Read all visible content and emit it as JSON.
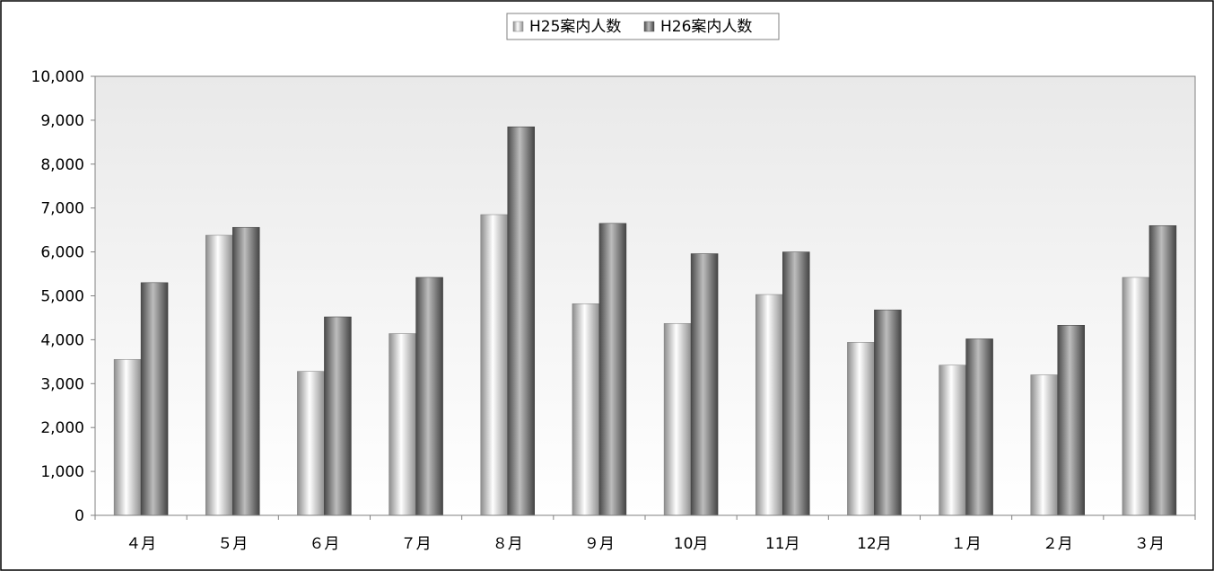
{
  "chart_data": {
    "type": "bar",
    "categories": [
      "４月",
      "５月",
      "６月",
      "７月",
      "８月",
      "９月",
      "10月",
      "11月",
      "12月",
      "１月",
      "２月",
      "３月"
    ],
    "series": [
      {
        "name": "H25案内人数",
        "values": [
          3550,
          6380,
          3280,
          4140,
          6850,
          4820,
          4370,
          5030,
          3940,
          3420,
          3200,
          5420
        ]
      },
      {
        "name": "H26案内人数",
        "values": [
          5300,
          6560,
          4520,
          5420,
          8850,
          6650,
          5960,
          6000,
          4680,
          4020,
          4330,
          6600
        ]
      }
    ],
    "ylim": [
      0,
      10000
    ],
    "yticks": [
      "0",
      "1,000",
      "2,000",
      "3,000",
      "4,000",
      "5,000",
      "6,000",
      "7,000",
      "8,000",
      "9,000",
      "10,000"
    ],
    "grid": false,
    "legend_position": "top-center",
    "colors": {
      "h25": "#d9d9d9",
      "h26": "#707070",
      "plot_bg_top": "#eaeaea",
      "plot_bg_bottom": "#ffffff"
    }
  }
}
